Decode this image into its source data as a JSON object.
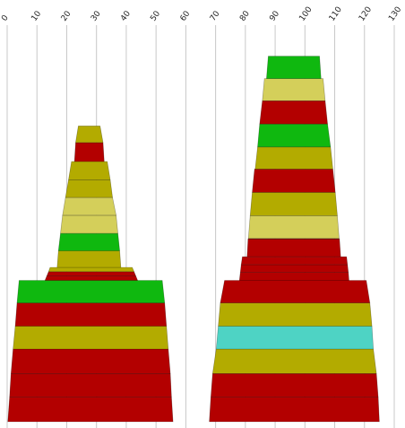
{
  "chart_data": {
    "type": "area",
    "title": "",
    "xlabel": "",
    "ylabel": "",
    "xlim": [
      0,
      130
    ],
    "ylim": [
      0,
      100
    ],
    "x_ticks": [
      0,
      10,
      20,
      30,
      40,
      50,
      60,
      70,
      80,
      90,
      100,
      110,
      120,
      130
    ],
    "grid": "vertical",
    "colors": {
      "dark_red": "#b30000",
      "olive": "#b3ab00",
      "light_olive": "#d4cf5a",
      "green": "#0fb80f",
      "teal": "#4ed3c4"
    },
    "shapes": [
      {
        "name": "left stack",
        "bands": [
          {
            "y0": 0.0,
            "y1": 6.2,
            "left0": 0.2,
            "right0": 55.7,
            "left1": 0.8,
            "right1": 55.2,
            "color": "dark_red"
          },
          {
            "y0": 6.2,
            "y1": 12.2,
            "left0": 0.8,
            "right0": 55.2,
            "left1": 1.3,
            "right1": 54.8,
            "color": "dark_red"
          },
          {
            "y0": 12.2,
            "y1": 18.4,
            "left0": 1.3,
            "right0": 54.8,
            "left1": 2.0,
            "right1": 54.1,
            "color": "dark_red"
          },
          {
            "y0": 18.4,
            "y1": 24.2,
            "left0": 2.0,
            "right0": 54.1,
            "left1": 2.7,
            "right1": 53.5,
            "color": "olive"
          },
          {
            "y0": 24.2,
            "y1": 30.1,
            "left0": 2.7,
            "right0": 53.5,
            "left1": 3.3,
            "right1": 52.9,
            "color": "dark_red"
          },
          {
            "y0": 30.1,
            "y1": 35.8,
            "left0": 3.3,
            "right0": 52.9,
            "left1": 4.0,
            "right1": 52.1,
            "color": "green"
          },
          {
            "y0": 35.8,
            "y1": 36.9,
            "left0": 12.7,
            "right0": 43.8,
            "left1": 13.3,
            "right1": 43.2,
            "color": "dark_red"
          },
          {
            "y0": 36.9,
            "y1": 38.0,
            "left0": 13.3,
            "right0": 43.2,
            "left1": 13.9,
            "right1": 42.6,
            "color": "dark_red"
          },
          {
            "y0": 38.0,
            "y1": 39.1,
            "left0": 13.9,
            "right0": 42.6,
            "left1": 14.4,
            "right1": 42.0,
            "color": "olive"
          },
          {
            "y0": 39.1,
            "y1": 43.3,
            "left0": 16.8,
            "right0": 38.2,
            "left1": 17.2,
            "right1": 37.8,
            "color": "olive"
          },
          {
            "y0": 43.3,
            "y1": 47.7,
            "left0": 17.2,
            "right0": 37.8,
            "left1": 17.9,
            "right1": 37.2,
            "color": "green"
          },
          {
            "y0": 47.7,
            "y1": 52.3,
            "left0": 17.9,
            "right0": 37.2,
            "left1": 18.6,
            "right1": 36.6,
            "color": "light_olive"
          },
          {
            "y0": 52.3,
            "y1": 56.8,
            "left0": 18.6,
            "right0": 36.6,
            "left1": 19.6,
            "right1": 35.4,
            "color": "light_olive"
          },
          {
            "y0": 56.8,
            "y1": 61.3,
            "left0": 19.6,
            "right0": 35.4,
            "left1": 20.6,
            "right1": 34.6,
            "color": "olive"
          },
          {
            "y0": 61.3,
            "y1": 65.9,
            "left0": 20.6,
            "right0": 34.6,
            "left1": 21.6,
            "right1": 33.6,
            "color": "olive"
          },
          {
            "y0": 65.9,
            "y1": 70.7,
            "left0": 22.6,
            "right0": 32.6,
            "left1": 23.0,
            "right1": 32.2,
            "color": "dark_red"
          },
          {
            "y0": 70.7,
            "y1": 74.9,
            "left0": 23.0,
            "right0": 32.2,
            "left1": 23.9,
            "right1": 31.2,
            "color": "olive"
          }
        ]
      },
      {
        "name": "right stack",
        "bands": [
          {
            "y0": 0.0,
            "y1": 6.2,
            "left0": 67.9,
            "right0": 125.0,
            "left1": 68.4,
            "right1": 124.6,
            "color": "dark_red"
          },
          {
            "y0": 6.2,
            "y1": 12.2,
            "left0": 68.4,
            "right0": 124.6,
            "left1": 69.0,
            "right1": 124.0,
            "color": "dark_red"
          },
          {
            "y0": 12.2,
            "y1": 18.4,
            "left0": 69.0,
            "right0": 124.0,
            "left1": 70.2,
            "right1": 123.0,
            "color": "olive"
          },
          {
            "y0": 18.4,
            "y1": 24.2,
            "left0": 70.2,
            "right0": 123.0,
            "left1": 70.9,
            "right1": 122.5,
            "color": "teal"
          },
          {
            "y0": 24.2,
            "y1": 30.1,
            "left0": 70.9,
            "right0": 122.5,
            "left1": 71.6,
            "right1": 121.8,
            "color": "olive"
          },
          {
            "y0": 30.1,
            "y1": 35.8,
            "left0": 71.6,
            "right0": 121.8,
            "left1": 73.0,
            "right1": 120.6,
            "color": "dark_red"
          },
          {
            "y0": 35.8,
            "y1": 37.8,
            "left0": 78.0,
            "right0": 114.8,
            "left1": 78.3,
            "right1": 114.6,
            "color": "dark_red"
          },
          {
            "y0": 37.8,
            "y1": 39.8,
            "left0": 78.3,
            "right0": 114.6,
            "left1": 78.6,
            "right1": 114.3,
            "color": "dark_red"
          },
          {
            "y0": 39.8,
            "y1": 41.8,
            "left0": 78.6,
            "right0": 114.3,
            "left1": 79.0,
            "right1": 114.0,
            "color": "dark_red"
          },
          {
            "y0": 41.8,
            "y1": 46.2,
            "left0": 80.6,
            "right0": 112.0,
            "left1": 80.9,
            "right1": 111.6,
            "color": "dark_red"
          },
          {
            "y0": 46.2,
            "y1": 46.4,
            "left0": 80.9,
            "right0": 111.6,
            "left1": 81.0,
            "right1": 111.5,
            "color": "dark_red"
          },
          {
            "y0": 46.4,
            "y1": 52.2,
            "left0": 81.0,
            "right0": 111.5,
            "left1": 81.6,
            "right1": 110.9,
            "color": "light_olive"
          },
          {
            "y0": 52.2,
            "y1": 58.1,
            "left0": 81.6,
            "right0": 110.9,
            "left1": 82.3,
            "right1": 110.2,
            "color": "olive"
          },
          {
            "y0": 58.1,
            "y1": 64.0,
            "left0": 82.3,
            "right0": 110.2,
            "left1": 83.1,
            "right1": 109.4,
            "color": "dark_red"
          },
          {
            "y0": 64.0,
            "y1": 69.6,
            "left0": 83.3,
            "right0": 109.4,
            "left1": 84.1,
            "right1": 108.6,
            "color": "olive"
          },
          {
            "y0": 69.6,
            "y1": 75.4,
            "left0": 84.1,
            "right0": 108.6,
            "left1": 84.8,
            "right1": 107.6,
            "color": "green"
          },
          {
            "y0": 75.4,
            "y1": 81.3,
            "left0": 84.8,
            "right0": 107.6,
            "left1": 85.7,
            "right1": 106.8,
            "color": "dark_red"
          },
          {
            "y0": 81.3,
            "y1": 86.9,
            "left0": 85.7,
            "right0": 106.8,
            "left1": 86.4,
            "right1": 106.1,
            "color": "light_olive"
          },
          {
            "y0": 86.9,
            "y1": 92.6,
            "left0": 87.1,
            "right0": 105.4,
            "left1": 87.7,
            "right1": 104.9,
            "color": "green"
          }
        ]
      }
    ]
  }
}
